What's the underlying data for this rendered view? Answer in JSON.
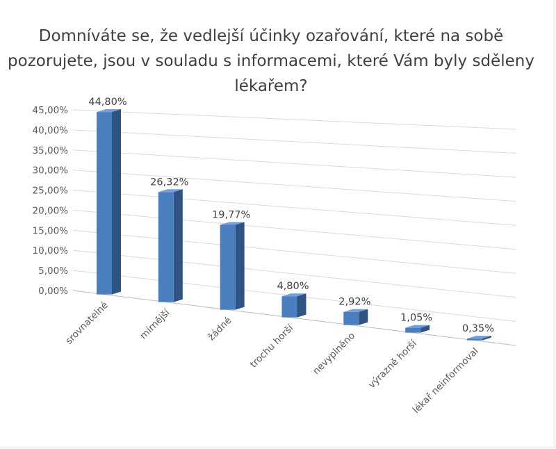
{
  "chart_data": {
    "type": "bar",
    "title": "Domníváte se, že vedlejší účinky ozařování, které na sobě pozorujete, jsou v souladu s informacemi, které Vám byly sděleny lékařem?",
    "categories": [
      "srovnatelné",
      "mírnější",
      "žádné",
      "trochu horší",
      "nevyplněno",
      "výrazně horší",
      "lékař neinformoval"
    ],
    "values": [
      44.8,
      26.32,
      19.77,
      4.8,
      2.92,
      1.05,
      0.35
    ],
    "data_labels": [
      "44,80%",
      "26,32%",
      "19,77%",
      "4,80%",
      "2,92%",
      "1,05%",
      "0,35%"
    ],
    "ylim": [
      0,
      45
    ],
    "yticks": [
      "0,00%",
      "5,00%",
      "10,00%",
      "15,00%",
      "20,00%",
      "25,00%",
      "30,00%",
      "35,00%",
      "40,00%",
      "45,00%"
    ],
    "grid": true,
    "style": "3d-column",
    "colors": {
      "front": "#4a7ebf",
      "side": "#2f5382",
      "top": "#6f9fdc",
      "grid": "#d9d9d9",
      "text": "#595959"
    }
  }
}
